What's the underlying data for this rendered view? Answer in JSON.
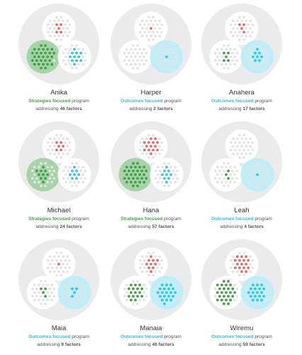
{
  "colors": {
    "big_circle": "#ebebeb",
    "small_circle": "#ffffff",
    "inactive_dot": "#e4e4e4",
    "red": "#e46a6a",
    "green": "#43a047",
    "cyan": "#2ec7e6",
    "green_highlight": "#a6d4a8",
    "cyan_highlight": "#bdeefa",
    "strategies_text": "#43a047",
    "outcomes_text": "#2cbfe3"
  },
  "text": {
    "program": "program",
    "addressing": "addressing",
    "factors": "factors"
  },
  "focus_labels": {
    "strategies": "Strategies focused",
    "outcomes": "Outcomes focused"
  },
  "people": [
    {
      "name": "Anika",
      "focus": "strategies",
      "factors": 46,
      "red": 5,
      "green": 30,
      "cyan": 11
    },
    {
      "name": "Harper",
      "focus": "outcomes",
      "factors": 2,
      "red": 1,
      "green": 0,
      "cyan": 1
    },
    {
      "name": "Anahera",
      "focus": "outcomes",
      "factors": 17,
      "red": 4,
      "green": 5,
      "cyan": 8
    },
    {
      "name": "Michael",
      "focus": "strategies",
      "factors": 24,
      "red": 6,
      "green": 10,
      "cyan": 8
    },
    {
      "name": "Hana",
      "focus": "strategies",
      "factors": 57,
      "red": 14,
      "green": 34,
      "cyan": 9
    },
    {
      "name": "Leah",
      "focus": "outcomes",
      "factors": 4,
      "red": 0,
      "green": 3,
      "cyan": 1
    },
    {
      "name": "Maia",
      "focus": "outcomes",
      "factors": 9,
      "red": 1,
      "green": 4,
      "cyan": 4
    },
    {
      "name": "Manaia",
      "focus": "outcomes",
      "factors": 46,
      "red": 10,
      "green": 16,
      "cyan": 20
    },
    {
      "name": "Wiremu",
      "focus": "outcomes",
      "factors": 59,
      "red": 16,
      "green": 25,
      "cyan": 18
    }
  ]
}
